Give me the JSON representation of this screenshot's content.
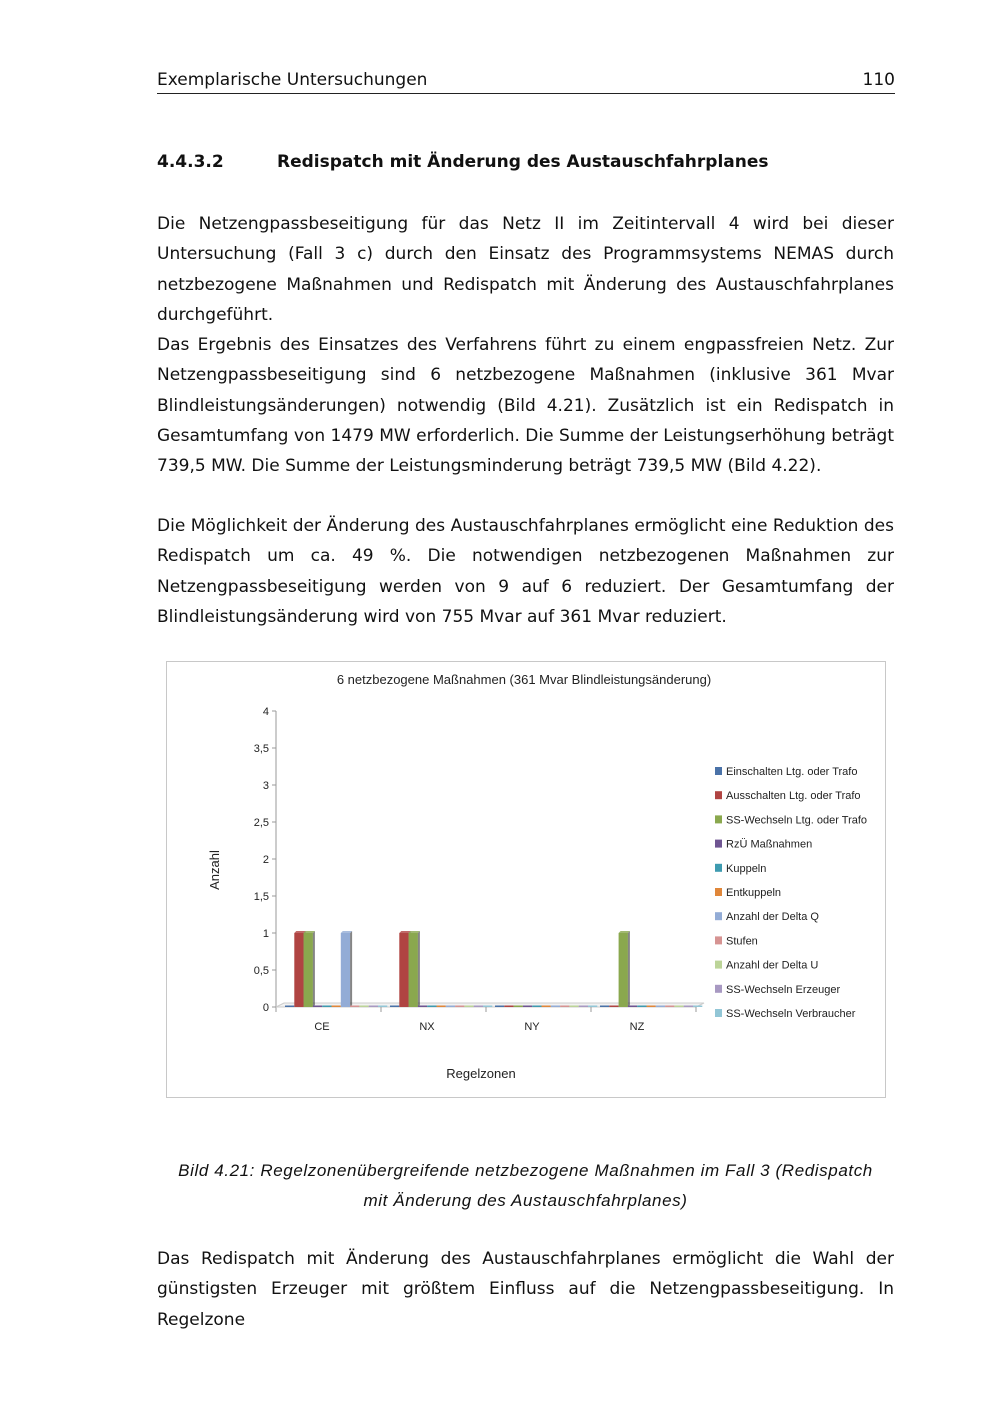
{
  "header": {
    "title": "Exemplarische Untersuchungen",
    "page": "110"
  },
  "section": {
    "number": "4.4.3.2",
    "title": "Redispatch mit Änderung des Austauschfahrplanes"
  },
  "paragraphs": [
    "Die Netzengpassbeseitigung für das Netz II im Zeitintervall 4 wird bei dieser Untersuchung (Fall 3 c) durch den Einsatz des Programmsystems NEMAS durch netzbezogene Maßnahmen und Redispatch mit Änderung des Austauschfahrplanes durchgeführt.",
    "Das Ergebnis des Einsatzes des Verfahrens führt zu einem engpassfreien Netz. Zur Netzengpassbeseitigung sind 6 netzbezogene Maßnahmen (inklusive 361 Mvar Blindleistungsänderungen) notwendig (Bild 4.21). Zusätzlich ist ein Redispatch in Gesamtumfang von 1479 MW erforderlich. Die Summe der Leistungserhöhung beträgt 739,5 MW. Die Summe der Leistungsminderung beträgt 739,5 MW (Bild 4.22).",
    "Die Möglichkeit der Änderung des Austauschfahrplanes ermöglicht eine Reduktion des Redispatch um ca. 49 %. Die notwendigen netzbezogenen Maßnahmen zur Netzengpassbeseitigung werden von 9 auf 6 reduziert. Der Gesamtumfang der Blindleistungsänderung wird von 755 Mvar auf 361 Mvar reduziert.",
    "Das Redispatch mit Änderung des Austauschfahrplanes ermöglicht die Wahl der günstigsten Erzeuger mit größtem Einfluss auf die Netzengpassbeseitigung. In Regelzone"
  ],
  "caption": {
    "line1": "Bild 4.21: Regelzonenübergreifende netzbezogene Maßnahmen im Fall 3 (Redispatch",
    "line2": "mit Änderung des Austauschfahrplanes)"
  },
  "chart_data": {
    "type": "bar",
    "title": "6 netzbezogene Maßnahmen (361 Mvar Blindleistungsänderung)",
    "xlabel": "Regelzonen",
    "ylabel": "Anzahl",
    "ylim": [
      0,
      4
    ],
    "yticks": [
      "0",
      "0,5",
      "1",
      "1,5",
      "2",
      "2,5",
      "3",
      "3,5",
      "4"
    ],
    "categories": [
      "CE",
      "NX",
      "NY",
      "NZ"
    ],
    "legend_position": "right",
    "series": [
      {
        "name": "Einschalten Ltg. oder Trafo",
        "color": "#4a72a8",
        "values": [
          0,
          0,
          0,
          0
        ]
      },
      {
        "name": "Ausschalten Ltg. oder Trafo",
        "color": "#b04442",
        "values": [
          1,
          1,
          0,
          0
        ]
      },
      {
        "name": "SS-Wechseln Ltg. oder Trafo",
        "color": "#8aa84e",
        "values": [
          1,
          1,
          0,
          1
        ]
      },
      {
        "name": "RzÜ Maßnahmen",
        "color": "#6f5592",
        "values": [
          0,
          0,
          0,
          0
        ]
      },
      {
        "name": "Kuppeln",
        "color": "#3e9bb0",
        "values": [
          0,
          0,
          0,
          0
        ]
      },
      {
        "name": "Entkuppeln",
        "color": "#e0873a",
        "values": [
          0,
          0,
          0,
          0
        ]
      },
      {
        "name": "Anzahl der Delta Q",
        "color": "#93acd6",
        "values": [
          1,
          0,
          0,
          0
        ]
      },
      {
        "name": "Stufen",
        "color": "#d69392",
        "values": [
          0,
          0,
          0,
          0
        ]
      },
      {
        "name": "Anzahl der Delta U",
        "color": "#bcd498",
        "values": [
          0,
          0,
          0,
          0
        ]
      },
      {
        "name": "SS-Wechseln Erzeuger",
        "color": "#a899c2",
        "values": [
          0,
          0,
          0,
          0
        ]
      },
      {
        "name": "SS-Wechseln Verbraucher",
        "color": "#92c6d6",
        "values": [
          0,
          0,
          0,
          0
        ]
      }
    ]
  }
}
